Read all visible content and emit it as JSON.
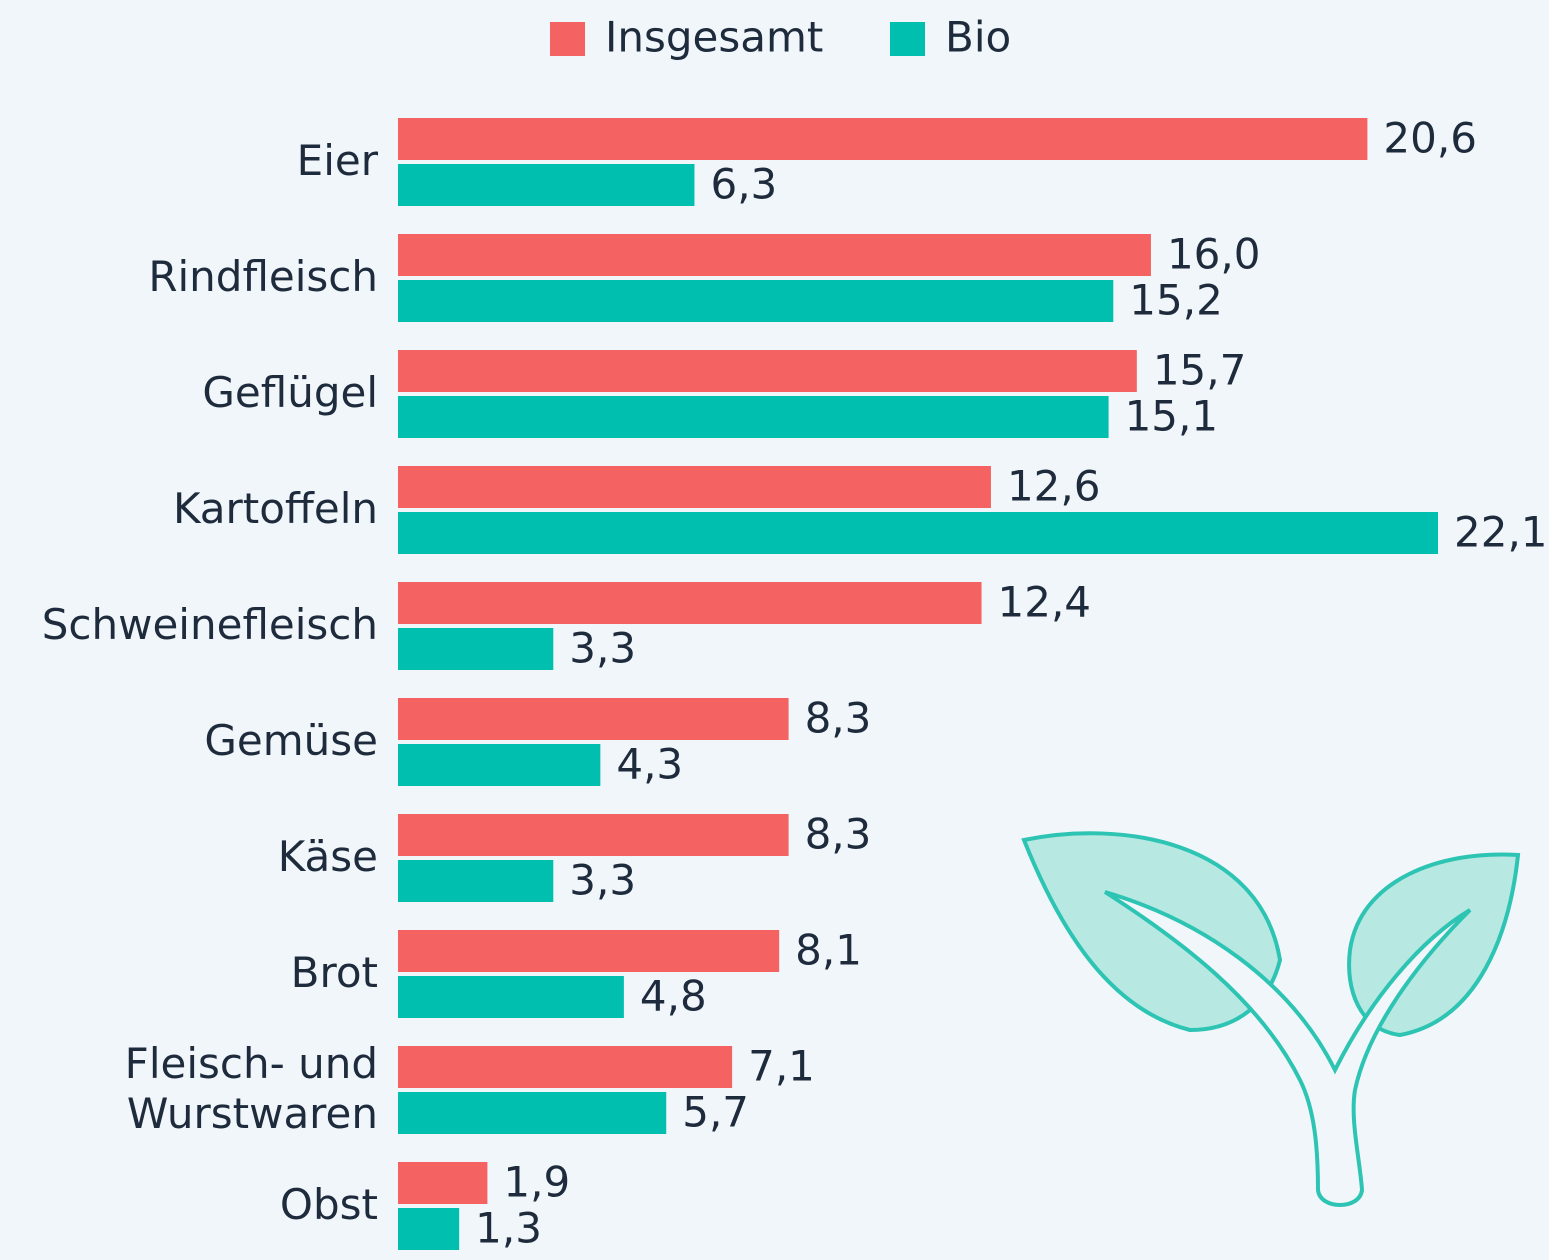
{
  "chart_data": {
    "type": "bar",
    "orientation": "horizontal",
    "categories": [
      "Eier",
      "Rindfleisch",
      "Geflügel",
      "Kartoffeln",
      "Schweinefleisch",
      "Gemüse",
      "Käse",
      "Brot",
      "Fleisch- und Wurstwaren",
      "Obst"
    ],
    "series": [
      {
        "name": "Insgesamt",
        "color": "#f46262",
        "values": [
          20.6,
          16.0,
          15.7,
          12.6,
          12.4,
          8.3,
          8.3,
          8.1,
          7.1,
          1.9
        ],
        "value_labels": [
          "20,6",
          "16,0",
          "15,7",
          "12,6",
          "12,4",
          "8,3",
          "8,3",
          "8,1",
          "7,1",
          "1,9"
        ]
      },
      {
        "name": "Bio",
        "color": "#00bfae",
        "values": [
          6.3,
          15.2,
          15.1,
          22.1,
          3.3,
          4.3,
          3.3,
          4.8,
          5.7,
          1.3
        ],
        "value_labels": [
          "6,3",
          "15,2",
          "15,1",
          "22,1",
          "3,3",
          "4,3",
          "3,3",
          "4,8",
          "5,7",
          "1,3"
        ]
      }
    ],
    "legend": "top"
  }
}
